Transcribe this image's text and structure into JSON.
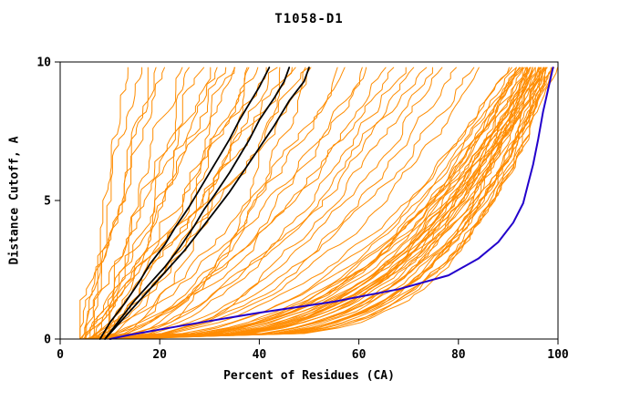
{
  "chart_data": {
    "type": "line",
    "title": "T1058-D1",
    "xlabel": "Percent of Residues (CA)",
    "ylabel": "Distance Cutoff, A",
    "xlim": [
      0,
      100
    ],
    "ylim": [
      0,
      10
    ],
    "x_ticks": [
      0,
      20,
      40,
      60,
      80,
      100
    ],
    "y_ticks": [
      0,
      5,
      10
    ],
    "grid": false,
    "legend": "none",
    "colors": {
      "model": "#ff8c00",
      "reference": "#000000",
      "best": "#2200cc",
      "frame": "#000000",
      "background": "#ffffff"
    },
    "orange_model_curves_params_x0_xtop_shape_wobble": [
      [
        5,
        97,
        0.28,
        1.2
      ],
      [
        6,
        95,
        0.32,
        1.2
      ],
      [
        4,
        98,
        0.22,
        1.2
      ],
      [
        7,
        93,
        0.35,
        1.2
      ],
      [
        8,
        96,
        0.3,
        1.2
      ],
      [
        5,
        99,
        0.2,
        1.2
      ],
      [
        9,
        94,
        0.33,
        1.2
      ],
      [
        6,
        92,
        0.38,
        1.2
      ],
      [
        10,
        97,
        0.26,
        1.2
      ],
      [
        7,
        98,
        0.24,
        1.2
      ],
      [
        11,
        95,
        0.3,
        1.2
      ],
      [
        8,
        91,
        0.4,
        1.2
      ],
      [
        5,
        96,
        0.27,
        1.2
      ],
      [
        6,
        99,
        0.21,
        1.2
      ],
      [
        9,
        98,
        0.23,
        1.2
      ],
      [
        12,
        96,
        0.29,
        1.2
      ],
      [
        7,
        95,
        0.31,
        1.2
      ],
      [
        8,
        97,
        0.25,
        1.2
      ],
      [
        10,
        93,
        0.36,
        1.2
      ],
      [
        6,
        94,
        0.34,
        1.2
      ],
      [
        5,
        98,
        0.22,
        1.2
      ],
      [
        9,
        96,
        0.28,
        1.2
      ],
      [
        11,
        97,
        0.27,
        1.2
      ],
      [
        7,
        92,
        0.37,
        1.2
      ],
      [
        8,
        99,
        0.2,
        1.2
      ],
      [
        13,
        95,
        0.32,
        1.2
      ],
      [
        6,
        96,
        0.3,
        1.2
      ],
      [
        10,
        98,
        0.24,
        1.2
      ],
      [
        5,
        93,
        0.35,
        1.2
      ],
      [
        9,
        97,
        0.26,
        1.2
      ],
      [
        12,
        94,
        0.33,
        1.2
      ],
      [
        7,
        96,
        0.29,
        1.2
      ],
      [
        8,
        95,
        0.31,
        1.2
      ],
      [
        14,
        98,
        0.25,
        1.2
      ],
      [
        6,
        97,
        0.27,
        1.2
      ],
      [
        10,
        96,
        0.3,
        1.2
      ],
      [
        11,
        93,
        0.37,
        1.2
      ],
      [
        5,
        95,
        0.33,
        1.2
      ],
      [
        9,
        99,
        0.21,
        1.2
      ],
      [
        7,
        94,
        0.34,
        1.2
      ],
      [
        13,
        97,
        0.28,
        1.2
      ],
      [
        8,
        98,
        0.23,
        1.2
      ],
      [
        6,
        91,
        0.42,
        1.2
      ],
      [
        12,
        99,
        0.22,
        1.2
      ],
      [
        6,
        62,
        0.6,
        1.6
      ],
      [
        8,
        70,
        0.55,
        1.6
      ],
      [
        5,
        57,
        0.65,
        1.6
      ],
      [
        9,
        75,
        0.5,
        1.6
      ],
      [
        7,
        66,
        0.6,
        1.6
      ],
      [
        10,
        80,
        0.48,
        1.6
      ],
      [
        6,
        73,
        0.52,
        1.6
      ],
      [
        8,
        59,
        0.68,
        1.6
      ],
      [
        5,
        68,
        0.58,
        1.6
      ],
      [
        11,
        77,
        0.5,
        1.6
      ],
      [
        7,
        83,
        0.45,
        1.6
      ],
      [
        9,
        63,
        0.62,
        1.6
      ],
      [
        6,
        86,
        0.43,
        1.6
      ],
      [
        10,
        71,
        0.55,
        1.6
      ],
      [
        6,
        38,
        0.4,
        1.6
      ],
      [
        8,
        45,
        0.35,
        1.6
      ],
      [
        5,
        50,
        0.38,
        1.6
      ],
      [
        7,
        34,
        0.45,
        1.6
      ],
      [
        4,
        16,
        1.2,
        2.0
      ],
      [
        5,
        20,
        1.1,
        2.0
      ],
      [
        6,
        24,
        1.0,
        2.0
      ],
      [
        4,
        28,
        0.95,
        2.0
      ],
      [
        7,
        32,
        0.9,
        2.0
      ],
      [
        5,
        36,
        0.95,
        2.0
      ],
      [
        6,
        40,
        0.9,
        2.0
      ],
      [
        8,
        44,
        0.85,
        2.0
      ],
      [
        4,
        48,
        0.9,
        2.0
      ],
      [
        7,
        52,
        0.85,
        2.0
      ],
      [
        5,
        14,
        1.3,
        1.5
      ],
      [
        6,
        18,
        1.15,
        2.0
      ],
      [
        8,
        26,
        1.0,
        2.0
      ],
      [
        4,
        22,
        1.1,
        2.0
      ],
      [
        7,
        30,
        1.0,
        2.0
      ],
      [
        5,
        34,
        0.95,
        2.0
      ],
      [
        9,
        38,
        0.9,
        2.0
      ],
      [
        6,
        46,
        0.88,
        2.0
      ],
      [
        8,
        50,
        0.86,
        2.0
      ],
      [
        4,
        42,
        0.92,
        2.0
      ]
    ],
    "black_reference_curves_points": [
      [
        [
          8,
          0
        ],
        [
          10,
          0.6
        ],
        [
          13,
          1.3
        ],
        [
          16,
          2.1
        ],
        [
          18,
          2.7
        ],
        [
          21,
          3.4
        ],
        [
          23,
          4.0
        ],
        [
          26,
          4.8
        ],
        [
          28,
          5.4
        ],
        [
          30,
          6.0
        ],
        [
          32,
          6.6
        ],
        [
          34,
          7.2
        ],
        [
          36,
          7.9
        ],
        [
          38,
          8.5
        ],
        [
          40,
          9.1
        ],
        [
          42,
          9.8
        ]
      ],
      [
        [
          9,
          0
        ],
        [
          12,
          0.7
        ],
        [
          15,
          1.4
        ],
        [
          18,
          2.0
        ],
        [
          21,
          2.6
        ],
        [
          24,
          3.3
        ],
        [
          27,
          4.1
        ],
        [
          29,
          4.7
        ],
        [
          31,
          5.2
        ],
        [
          34,
          6.0
        ],
        [
          36,
          6.6
        ],
        [
          38,
          7.2
        ],
        [
          40,
          7.9
        ],
        [
          43,
          8.7
        ],
        [
          45,
          9.3
        ],
        [
          46,
          9.8
        ]
      ],
      [
        [
          9,
          0
        ],
        [
          13,
          0.8
        ],
        [
          17,
          1.6
        ],
        [
          21,
          2.4
        ],
        [
          25,
          3.2
        ],
        [
          28,
          3.9
        ],
        [
          31,
          4.6
        ],
        [
          34,
          5.3
        ],
        [
          37,
          6.1
        ],
        [
          40,
          6.9
        ],
        [
          43,
          7.7
        ],
        [
          46,
          8.6
        ],
        [
          49,
          9.3
        ],
        [
          50,
          9.8
        ]
      ]
    ],
    "blue_best_curve_points": [
      [
        10,
        0
      ],
      [
        14,
        0.15
      ],
      [
        25,
        0.5
      ],
      [
        40,
        0.95
      ],
      [
        55,
        1.35
      ],
      [
        68,
        1.8
      ],
      [
        78,
        2.3
      ],
      [
        84,
        2.9
      ],
      [
        88,
        3.5
      ],
      [
        91,
        4.2
      ],
      [
        93,
        4.9
      ],
      [
        94,
        5.6
      ],
      [
        95,
        6.3
      ],
      [
        96,
        7.2
      ],
      [
        97,
        8.2
      ],
      [
        98,
        9.0
      ],
      [
        99,
        9.8
      ]
    ]
  }
}
